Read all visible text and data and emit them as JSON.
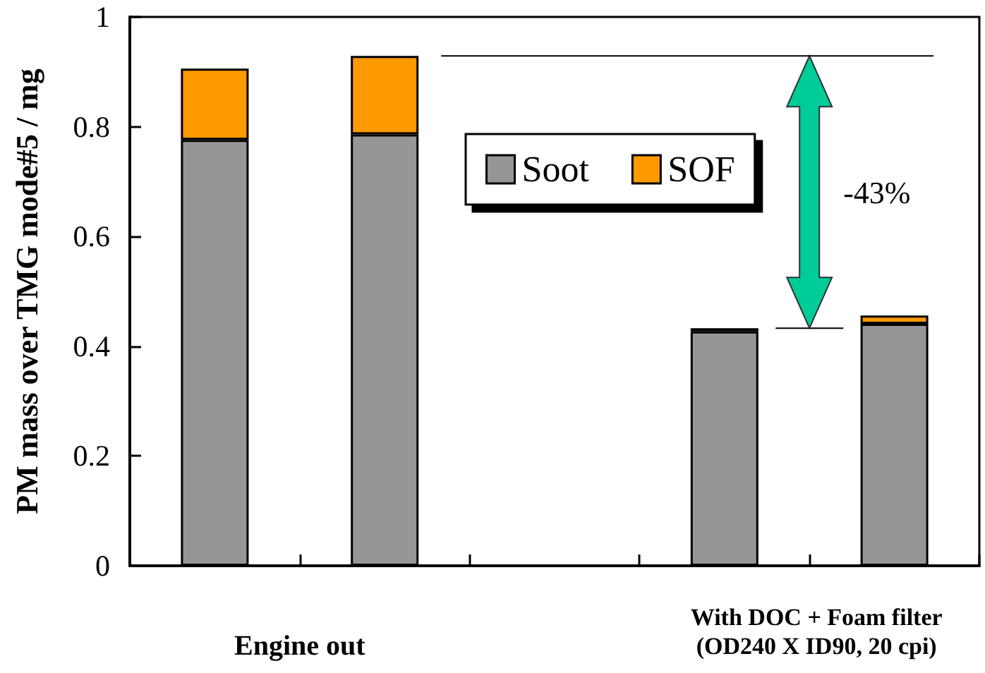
{
  "chart_data": {
    "type": "bar",
    "stacked": true,
    "ylabel": "PM mass over TMG mode#5 / mg",
    "categories": [
      null,
      null,
      null,
      null,
      null
    ],
    "series": [
      {
        "name": "Soot",
        "color": "#969696",
        "values": [
          0.776,
          0.786,
          null,
          0.427,
          0.441
        ]
      },
      {
        "name": "SOF",
        "color": "#ff9900",
        "values": [
          0.13,
          0.143,
          null,
          0.006,
          0.015
        ]
      }
    ],
    "ylim": [
      0,
      1
    ],
    "yticks": [
      0,
      0.2,
      0.4,
      0.6,
      0.8,
      1
    ],
    "annotations": [
      "Engine out",
      "With DOC + Foam filter\n(OD240 X ID90, 20 cpi)",
      "-43%"
    ],
    "ref_lines": [
      {
        "axis": "y",
        "value": 0.929
      }
    ],
    "legend": "top",
    "grid": false
  }
}
